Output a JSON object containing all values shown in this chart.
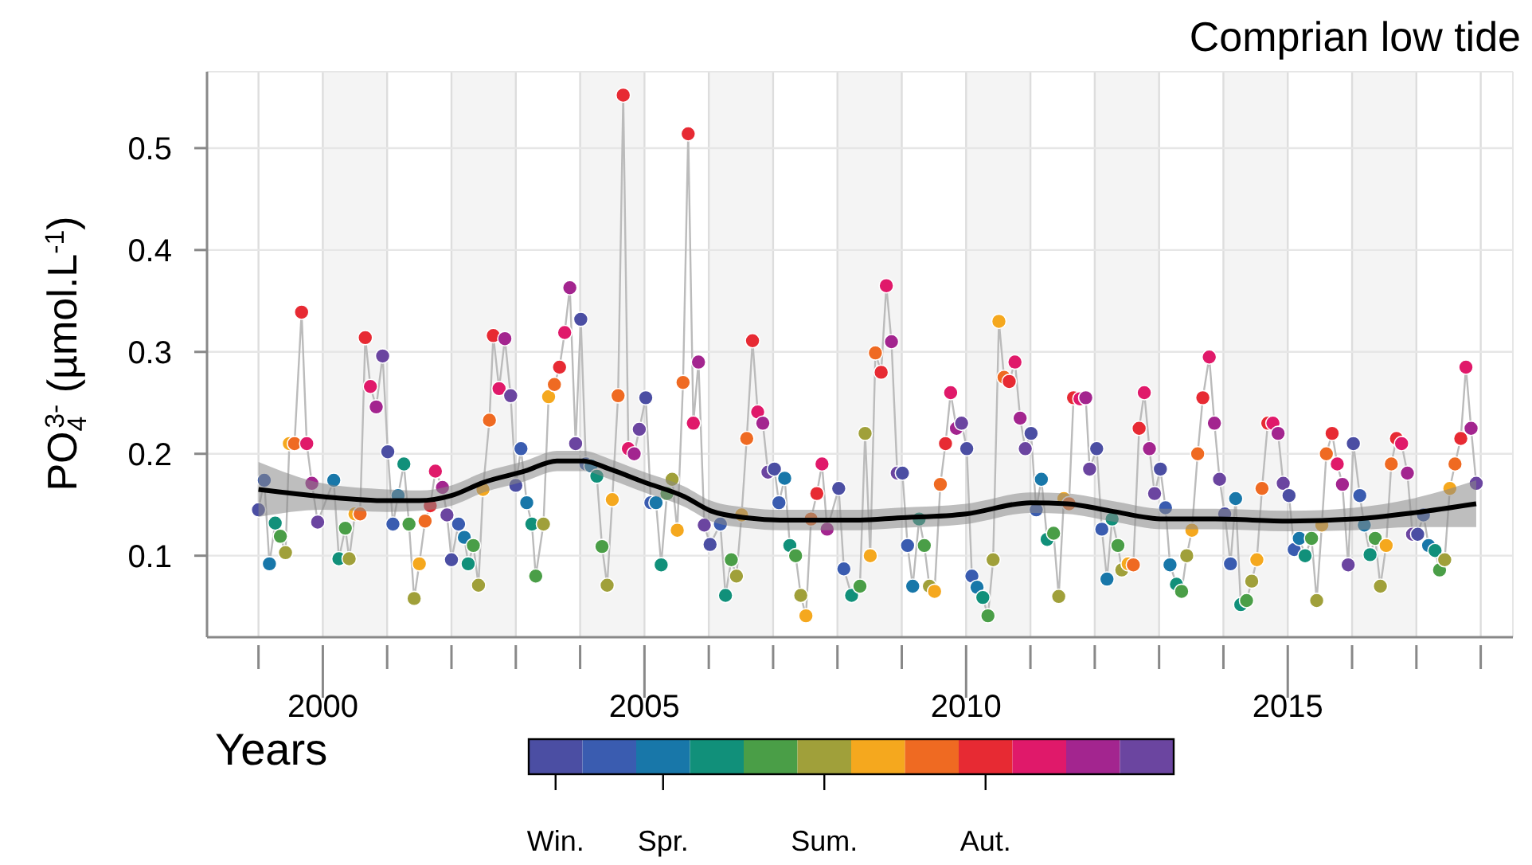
{
  "chart_data": {
    "type": "line",
    "title": "Comprian low tide",
    "xlabel": "Years",
    "ylabel": "PO$_{4}$$^{3-}$ (µmol.L$^{-1}$)",
    "xlim": [
      1998.2,
      2018.5
    ],
    "ylim": [
      0.02,
      0.575
    ],
    "xticks": [
      {
        "value": 1999,
        "label": null
      },
      2000,
      {
        "value": 2001,
        "label": null
      },
      {
        "value": 2002,
        "label": null
      },
      {
        "value": 2003,
        "label": null
      },
      {
        "value": 2004,
        "label": null
      },
      2005,
      {
        "value": 2006,
        "label": null
      },
      {
        "value": 2007,
        "label": null
      },
      {
        "value": 2008,
        "label": null
      },
      {
        "value": 2009,
        "label": null
      },
      2010,
      {
        "value": 2011,
        "label": null
      },
      {
        "value": 2012,
        "label": null
      },
      {
        "value": 2013,
        "label": null
      },
      {
        "value": 2014,
        "label": null
      },
      2015,
      {
        "value": 2016,
        "label": null
      },
      {
        "value": 2017,
        "label": null
      },
      {
        "value": 2018,
        "label": null
      }
    ],
    "yticks": [
      0.1,
      0.2,
      0.3,
      0.4,
      0.5
    ],
    "grid": true,
    "clim": [
      0.5,
      12.5
    ],
    "cticks": [
      {
        "value": 1,
        "label": "Win."
      },
      {
        "value": 3,
        "label": "Spr."
      },
      {
        "value": 6,
        "label": "Sum."
      },
      {
        "value": 9,
        "label": "Aut."
      }
    ],
    "bands": [
      {
        "axis": "x",
        "from": 2000,
        "to": 2001,
        "color": "#f4f4f4"
      },
      {
        "axis": "x",
        "from": 2002,
        "to": 2003,
        "color": "#f4f4f4"
      },
      {
        "axis": "x",
        "from": 2004,
        "to": 2005,
        "color": "#f4f4f4"
      },
      {
        "axis": "x",
        "from": 2006,
        "to": 2007,
        "color": "#f4f4f4"
      },
      {
        "axis": "x",
        "from": 2008,
        "to": 2009,
        "color": "#f4f4f4"
      },
      {
        "axis": "x",
        "from": 2010,
        "to": 2011,
        "color": "#f4f4f4"
      },
      {
        "axis": "x",
        "from": 2012,
        "to": 2013,
        "color": "#f4f4f4"
      },
      {
        "axis": "x",
        "from": 2014,
        "to": 2015,
        "color": "#f4f4f4"
      },
      {
        "axis": "x",
        "from": 2016,
        "to": 2017,
        "color": "#f4f4f4"
      }
    ],
    "series": [
      {
        "type": "line",
        "color": "#bbbbbb",
        "marker": "circle",
        "x": [
          1999.0,
          1999.09,
          1999.17,
          1999.26,
          1999.34,
          1999.42,
          1999.48,
          1999.56,
          1999.67,
          1999.75,
          1999.83,
          1999.92,
          2000.17,
          2000.25,
          2000.35,
          2000.41,
          2000.5,
          2000.58,
          2000.66,
          2000.74,
          2000.83,
          2000.93,
          2001.01,
          2001.09,
          2001.17,
          2001.26,
          2001.34,
          2001.42,
          2001.5,
          2001.59,
          2001.67,
          2001.75,
          2001.86,
          2001.93,
          2002.0,
          2002.11,
          2002.2,
          2002.26,
          2002.34,
          2002.42,
          2002.49,
          2002.59,
          2002.65,
          2002.74,
          2002.83,
          2002.92,
          2003.0,
          2003.08,
          2003.17,
          2003.25,
          2003.31,
          2003.43,
          2003.51,
          2003.6,
          2003.68,
          2003.76,
          2003.84,
          2003.93,
          2004.01,
          2004.09,
          2004.17,
          2004.26,
          2004.34,
          2004.42,
          2004.5,
          2004.59,
          2004.67,
          2004.75,
          2004.84,
          2004.92,
          2005.02,
          2005.1,
          2005.18,
          2005.26,
          2005.35,
          2005.43,
          2005.51,
          2005.6,
          2005.68,
          2005.76,
          2005.84,
          2005.93,
          2006.02,
          2006.18,
          2006.26,
          2006.35,
          2006.43,
          2006.51,
          2006.59,
          2006.68,
          2006.76,
          2006.84,
          2006.92,
          2007.02,
          2007.09,
          2007.18,
          2007.26,
          2007.35,
          2007.43,
          2007.51,
          2007.59,
          2007.68,
          2007.76,
          2007.84,
          2008.02,
          2008.1,
          2008.22,
          2008.35,
          2008.43,
          2008.51,
          2008.59,
          2008.68,
          2008.76,
          2008.84,
          2008.93,
          2009.01,
          2009.09,
          2009.17,
          2009.27,
          2009.35,
          2009.43,
          2009.51,
          2009.6,
          2009.68,
          2009.76,
          2009.85,
          2009.93,
          2010.01,
          2010.09,
          2010.17,
          2010.26,
          2010.34,
          2010.42,
          2010.51,
          2010.59,
          2010.67,
          2010.76,
          2010.84,
          2010.92,
          2011.01,
          2011.09,
          2011.17,
          2011.26,
          2011.36,
          2011.44,
          2011.52,
          2011.6,
          2011.67,
          2011.77,
          2011.86,
          2011.92,
          2012.03,
          2012.11,
          2012.19,
          2012.27,
          2012.36,
          2012.42,
          2012.52,
          2012.6,
          2012.69,
          2012.77,
          2012.85,
          2012.93,
          2013.02,
          2013.1,
          2013.17,
          2013.27,
          2013.35,
          2013.43,
          2013.51,
          2013.6,
          2013.68,
          2013.78,
          2013.86,
          2013.94,
          2014.02,
          2014.11,
          2014.19,
          2014.27,
          2014.36,
          2014.44,
          2014.52,
          2014.6,
          2014.69,
          2014.77,
          2014.85,
          2014.93,
          2015.02,
          2015.1,
          2015.18,
          2015.27,
          2015.37,
          2015.45,
          2015.53,
          2015.6,
          2015.69,
          2015.77,
          2015.85,
          2015.94,
          2016.02,
          2016.12,
          2016.19,
          2016.28,
          2016.36,
          2016.44,
          2016.53,
          2016.61,
          2016.69,
          2016.77,
          2016.86,
          2016.94,
          2017.02,
          2017.11,
          2017.19,
          2017.29,
          2017.36,
          2017.44,
          2017.52,
          2017.6,
          2017.69,
          2017.77,
          2017.85,
          2017.93
        ],
        "values": [
          0.145,
          0.174,
          0.092,
          0.132,
          0.119,
          0.103,
          0.21,
          0.21,
          0.339,
          0.21,
          0.171,
          0.133,
          0.174,
          0.097,
          0.127,
          0.097,
          0.141,
          0.141,
          0.314,
          0.266,
          0.246,
          0.296,
          0.202,
          0.131,
          0.159,
          0.19,
          0.131,
          0.058,
          0.092,
          0.134,
          0.149,
          0.183,
          0.167,
          0.14,
          0.096,
          0.131,
          0.118,
          0.092,
          0.11,
          0.071,
          0.165,
          0.233,
          0.316,
          0.264,
          0.313,
          0.257,
          0.169,
          0.205,
          0.152,
          0.131,
          0.08,
          0.131,
          0.256,
          0.268,
          0.285,
          0.319,
          0.363,
          0.21,
          0.332,
          0.19,
          0.188,
          0.178,
          0.109,
          0.071,
          0.155,
          0.257,
          0.552,
          0.205,
          0.2,
          0.224,
          0.255,
          0.152,
          0.152,
          0.091,
          0.161,
          0.175,
          0.125,
          0.27,
          0.514,
          0.23,
          0.29,
          0.13,
          0.111,
          0.131,
          0.061,
          0.096,
          0.08,
          0.14,
          0.215,
          0.311,
          0.241,
          0.23,
          0.182,
          0.185,
          0.152,
          0.176,
          0.11,
          0.1,
          0.061,
          0.041,
          0.136,
          0.161,
          0.19,
          0.126,
          0.166,
          0.087,
          0.061,
          0.07,
          0.22,
          0.1,
          0.299,
          0.28,
          0.365,
          0.31,
          0.181,
          0.181,
          0.11,
          0.07,
          0.136,
          0.11,
          0.07,
          0.065,
          0.17,
          0.21,
          0.26,
          0.225,
          0.23,
          0.205,
          0.08,
          0.069,
          0.059,
          0.041,
          0.096,
          0.33,
          0.275,
          0.271,
          0.29,
          0.235,
          0.205,
          0.22,
          0.145,
          0.175,
          0.116,
          0.122,
          0.06,
          0.156,
          0.151,
          0.255,
          0.254,
          0.255,
          0.185,
          0.205,
          0.126,
          0.077,
          0.136,
          0.11,
          0.086,
          0.092,
          0.091,
          0.225,
          0.26,
          0.205,
          0.161,
          0.185,
          0.147,
          0.091,
          0.072,
          0.065,
          0.1,
          0.125,
          0.2,
          0.255,
          0.295,
          0.23,
          0.175,
          0.141,
          0.092,
          0.156,
          0.052,
          0.056,
          0.075,
          0.096,
          0.166,
          0.23,
          0.23,
          0.22,
          0.171,
          0.159,
          0.106,
          0.117,
          0.1,
          0.117,
          0.056,
          0.13,
          0.2,
          0.22,
          0.19,
          0.17,
          0.091,
          0.21,
          0.159,
          0.13,
          0.101,
          0.117,
          0.07,
          0.11,
          0.19,
          0.215,
          0.21,
          0.181,
          0.121,
          0.121,
          0.14,
          0.11,
          0.105,
          0.086,
          0.096,
          0.166,
          0.19,
          0.215,
          0.285,
          0.225,
          0.171
        ],
        "colors": [
          "#4b4ea3",
          "#3a5cb0",
          "#1877a9",
          "#11907a",
          "#4a9e47",
          "#a0a03a",
          "#f5a81e",
          "#ef6a22",
          "#e72a33",
          "#e0196a",
          "#a3258f",
          "#6b45a0",
          "#1877a9",
          "#11907a",
          "#4a9e47",
          "#a0a03a",
          "#f5a81e",
          "#ef6a22",
          "#e72a33",
          "#e0196a",
          "#a3258f",
          "#6b45a0",
          "#4b4ea3",
          "#3a5cb0",
          "#1877a9",
          "#11907a",
          "#4a9e47",
          "#a0a03a",
          "#f5a81e",
          "#ef6a22",
          "#e72a33",
          "#e0196a",
          "#a3258f",
          "#6b45a0",
          "#4b4ea3",
          "#3a5cb0",
          "#1877a9",
          "#11907a",
          "#4a9e47",
          "#a0a03a",
          "#f5a81e",
          "#ef6a22",
          "#e72a33",
          "#e0196a",
          "#a3258f",
          "#6b45a0",
          "#4b4ea3",
          "#3a5cb0",
          "#1877a9",
          "#11907a",
          "#4a9e47",
          "#a0a03a",
          "#f5a81e",
          "#ef6a22",
          "#e72a33",
          "#e0196a",
          "#a3258f",
          "#6b45a0",
          "#4b4ea3",
          "#3a5cb0",
          "#1877a9",
          "#11907a",
          "#4a9e47",
          "#a0a03a",
          "#f5a81e",
          "#ef6a22",
          "#e72a33",
          "#e0196a",
          "#a3258f",
          "#6b45a0",
          "#4b4ea3",
          "#3a5cb0",
          "#1877a9",
          "#11907a",
          "#4a9e47",
          "#a0a03a",
          "#f5a81e",
          "#ef6a22",
          "#e72a33",
          "#e0196a",
          "#a3258f",
          "#6b45a0",
          "#4b4ea3",
          "#3a5cb0",
          "#11907a",
          "#4a9e47",
          "#a0a03a",
          "#f5a81e",
          "#ef6a22",
          "#e72a33",
          "#e0196a",
          "#a3258f",
          "#6b45a0",
          "#4b4ea3",
          "#3a5cb0",
          "#1877a9",
          "#11907a",
          "#4a9e47",
          "#a0a03a",
          "#f5a81e",
          "#ef6a22",
          "#e72a33",
          "#e0196a",
          "#a3258f",
          "#4b4ea3",
          "#3a5cb0",
          "#11907a",
          "#4a9e47",
          "#a0a03a",
          "#f5a81e",
          "#ef6a22",
          "#e72a33",
          "#e0196a",
          "#a3258f",
          "#6b45a0",
          "#4b4ea3",
          "#3a5cb0",
          "#1877a9",
          "#11907a",
          "#4a9e47",
          "#a0a03a",
          "#f5a81e",
          "#ef6a22",
          "#e72a33",
          "#e0196a",
          "#a3258f",
          "#6b45a0",
          "#4b4ea3",
          "#3a5cb0",
          "#1877a9",
          "#11907a",
          "#4a9e47",
          "#a0a03a",
          "#f5a81e",
          "#ef6a22",
          "#e72a33",
          "#e0196a",
          "#a3258f",
          "#6b45a0",
          "#4b4ea3",
          "#3a5cb0",
          "#1877a9",
          "#11907a",
          "#4a9e47",
          "#a0a03a",
          "#f5a81e",
          "#ef6a22",
          "#e72a33",
          "#e0196a",
          "#a3258f",
          "#6b45a0",
          "#4b4ea3",
          "#3a5cb0",
          "#1877a9",
          "#11907a",
          "#4a9e47",
          "#a0a03a",
          "#f5a81e",
          "#ef6a22",
          "#e72a33",
          "#e0196a",
          "#a3258f",
          "#6b45a0",
          "#4b4ea3",
          "#3a5cb0",
          "#1877a9",
          "#11907a",
          "#4a9e47",
          "#a0a03a",
          "#f5a81e",
          "#ef6a22",
          "#e72a33",
          "#e0196a",
          "#a3258f",
          "#6b45a0",
          "#4b4ea3",
          "#3a5cb0",
          "#1877a9",
          "#11907a",
          "#4a9e47",
          "#a0a03a",
          "#f5a81e",
          "#ef6a22",
          "#e72a33",
          "#e0196a",
          "#a3258f",
          "#6b45a0",
          "#4b4ea3",
          "#3a5cb0",
          "#1877a9",
          "#11907a",
          "#4a9e47",
          "#a0a03a",
          "#f5a81e",
          "#ef6a22",
          "#e72a33",
          "#e0196a",
          "#a3258f",
          "#6b45a0",
          "#4b4ea3",
          "#3a5cb0",
          "#1877a9",
          "#11907a",
          "#4a9e47",
          "#a0a03a",
          "#f5a81e",
          "#ef6a22",
          "#e72a33",
          "#e0196a",
          "#a3258f",
          "#6b45a0",
          "#4b4ea3",
          "#3a5cb0",
          "#1877a9",
          "#11907a",
          "#4a9e47",
          "#a0a03a",
          "#f5a81e",
          "#ef6a22",
          "#e72a33",
          "#e0196a",
          "#a3258f",
          "#6b45a0"
        ]
      },
      {
        "type": "line",
        "color": "#000000",
        "marker": "none",
        "x": [
          1999.0,
          2000.0,
          2001.0,
          2001.5,
          2002.0,
          2002.5,
          2003.14,
          2003.64,
          2004.05,
          2004.46,
          2005.0,
          2005.62,
          2006.03,
          2006.61,
          2007.11,
          2007.77,
          2008.35,
          2008.93,
          2010.0,
          2011.0,
          2011.57,
          2012.24,
          2013.07,
          2013.88,
          2015.02,
          2016.03,
          2016.94,
          2017.93
        ],
        "values": [
          0.165,
          0.158,
          0.154,
          0.154,
          0.159,
          0.172,
          0.183,
          0.193,
          0.193,
          0.185,
          0.172,
          0.158,
          0.144,
          0.137,
          0.135,
          0.135,
          0.135,
          0.137,
          0.141,
          0.152,
          0.151,
          0.144,
          0.136,
          0.136,
          0.134,
          0.136,
          0.142,
          0.151
        ],
        "lower": [
          0.138,
          0.145,
          0.143,
          0.144,
          0.149,
          0.162,
          0.173,
          0.183,
          0.183,
          0.175,
          0.162,
          0.148,
          0.134,
          0.127,
          0.125,
          0.125,
          0.125,
          0.127,
          0.131,
          0.142,
          0.141,
          0.134,
          0.126,
          0.126,
          0.124,
          0.125,
          0.128,
          0.128
        ],
        "upper": [
          0.192,
          0.171,
          0.165,
          0.164,
          0.169,
          0.182,
          0.193,
          0.203,
          0.203,
          0.195,
          0.182,
          0.168,
          0.154,
          0.147,
          0.145,
          0.145,
          0.145,
          0.147,
          0.151,
          0.162,
          0.161,
          0.154,
          0.146,
          0.146,
          0.144,
          0.147,
          0.156,
          0.174
        ]
      }
    ]
  }
}
